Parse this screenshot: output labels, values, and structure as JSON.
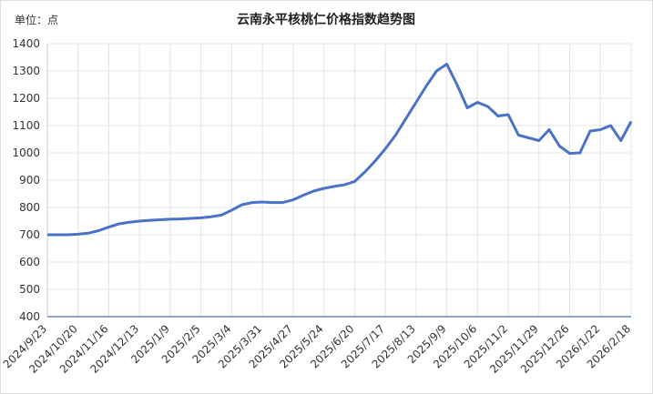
{
  "chart_data": {
    "type": "line",
    "title": "云南永平核桃仁价格指数趋势图",
    "unit_label": "单位：点",
    "categories": [
      "2024/9/23",
      null,
      null,
      "2024/10/20",
      null,
      null,
      "2024/11/16",
      null,
      null,
      "2024/12/13",
      null,
      null,
      "2025/1/9",
      null,
      null,
      "2025/2/5",
      null,
      null,
      "2025/3/4",
      null,
      null,
      "2025/3/31",
      null,
      null,
      "2025/4/27",
      null,
      null,
      "2025/5/24",
      null,
      null,
      "2025/6/20",
      null,
      null,
      "2025/7/17",
      null,
      null,
      "2025/8/13",
      null,
      null,
      "2025/9/9",
      null,
      null,
      "2025/10/6",
      null,
      null,
      "2025/11/2",
      null,
      null,
      "2025/11/29",
      null,
      null,
      "2025/12/26",
      null,
      null,
      "2026/1/22",
      null,
      null,
      "2026/2/18"
    ],
    "values": [
      700,
      700,
      700,
      702,
      706,
      715,
      728,
      740,
      746,
      750,
      753,
      755,
      757,
      758,
      760,
      762,
      766,
      772,
      790,
      810,
      818,
      820,
      818,
      818,
      828,
      845,
      860,
      870,
      877,
      883,
      895,
      930,
      970,
      1015,
      1065,
      1125,
      1185,
      1245,
      1300,
      1325,
      1250,
      1165,
      1185,
      1170,
      1135,
      1140,
      1065,
      1055,
      1045,
      1085,
      1025,
      998,
      1000,
      1080,
      1085,
      1100,
      1045,
      1115
    ],
    "color": "#4a72c6",
    "ylim": [
      400,
      1400
    ],
    "yticks": [
      400,
      500,
      600,
      700,
      800,
      900,
      1000,
      1100,
      1200,
      1300,
      1400
    ],
    "grid": true
  }
}
